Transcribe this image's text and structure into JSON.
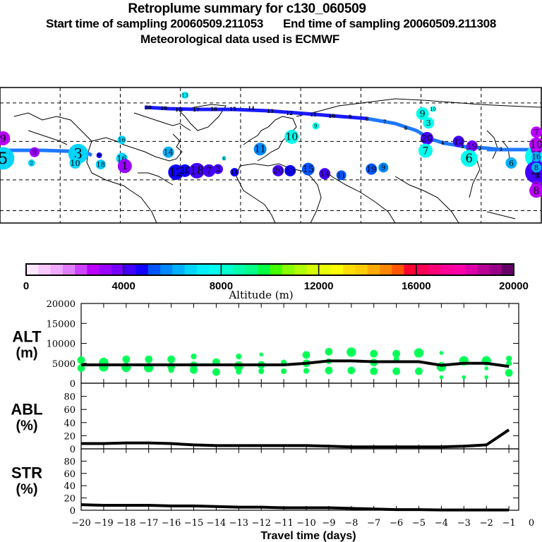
{
  "header": {
    "title": "Retroplume summary for c130_060509",
    "start_label": "Start time of sampling 20060509.211053",
    "end_label": "End time of sampling 20060509.211308",
    "met_label": "Meteorological data used is ECMWF"
  },
  "map": {
    "description": "World map (Pacific-centered, 180W to 180E) with retroplume trajectory and cluster centroids colored by altitude",
    "trajectory_color": "#1a1aff",
    "trajectory_color_light": "#1e78ff",
    "clusters": [
      {
        "label": "5",
        "lon": -178,
        "lat": 34,
        "alt": 6500,
        "r": 16
      },
      {
        "label": "9",
        "lon": -178,
        "lat": 47,
        "alt": 2500,
        "r": 10
      },
      {
        "label": "9",
        "lon": -157,
        "lat": 38,
        "alt": 3200,
        "r": 7
      },
      {
        "label": "2",
        "lon": -159,
        "lat": 31,
        "alt": 6500,
        "r": 5
      },
      {
        "label": "3",
        "lon": -128,
        "lat": 37,
        "alt": 6500,
        "r": 14
      },
      {
        "label": "10",
        "lon": -130,
        "lat": 31,
        "alt": 6500,
        "r": 8
      },
      {
        "label": "18",
        "lon": -113,
        "lat": 30,
        "alt": 6500,
        "r": 7
      },
      {
        "label": "4",
        "lon": -114,
        "lat": 36,
        "alt": 4500,
        "r": 4
      },
      {
        "label": "16",
        "lon": -99,
        "lat": 34,
        "alt": 6500,
        "r": 8
      },
      {
        "label": "1",
        "lon": -97,
        "lat": 29,
        "alt": 3000,
        "r": 10
      },
      {
        "label": "16",
        "lon": -99,
        "lat": 46,
        "alt": 6800,
        "r": 6
      },
      {
        "label": "14",
        "lon": -68,
        "lat": 38,
        "alt": 6000,
        "r": 8
      },
      {
        "label": "12",
        "lon": -63,
        "lat": 25,
        "alt": 4800,
        "r": 11
      },
      {
        "label": "20",
        "lon": -57,
        "lat": 26,
        "alt": 4500,
        "r": 9
      },
      {
        "label": "18",
        "lon": -49,
        "lat": 26,
        "alt": 4200,
        "r": 11
      },
      {
        "label": "7",
        "lon": -41,
        "lat": 26,
        "alt": 4000,
        "r": 9
      },
      {
        "label": "2",
        "lon": -35,
        "lat": 27,
        "alt": 4300,
        "r": 7
      },
      {
        "label": "14",
        "lon": -24,
        "lat": 25,
        "alt": 4700,
        "r": 6
      },
      {
        "label": "6",
        "lon": -31,
        "lat": 34,
        "alt": 7000,
        "r": 3
      },
      {
        "label": "11",
        "lon": -7,
        "lat": 40,
        "alt": 5800,
        "r": 9
      },
      {
        "label": "10",
        "lon": 14,
        "lat": 48,
        "alt": 7800,
        "r": 10
      },
      {
        "label": "9",
        "lon": 30,
        "lat": 55,
        "alt": 7500,
        "r": 5
      },
      {
        "label": "13",
        "lon": -57,
        "lat": 75,
        "alt": 7000,
        "r": 5
      },
      {
        "label": "20",
        "lon": 5,
        "lat": 26,
        "alt": 4200,
        "r": 8
      },
      {
        "label": "13",
        "lon": 13,
        "lat": 26,
        "alt": 4500,
        "r": 8
      },
      {
        "label": "15",
        "lon": 25,
        "lat": 27,
        "alt": 5200,
        "r": 9
      },
      {
        "label": "14",
        "lon": 36,
        "lat": 24,
        "alt": 4400,
        "r": 8
      },
      {
        "label": "11",
        "lon": 47,
        "lat": 23,
        "alt": 5000,
        "r": 7
      },
      {
        "label": "19",
        "lon": 67,
        "lat": 27,
        "alt": 5300,
        "r": 8
      },
      {
        "label": "9",
        "lon": 75,
        "lat": 28,
        "alt": 5800,
        "r": 7
      },
      {
        "label": "9",
        "lon": 101,
        "lat": 63,
        "alt": 7600,
        "r": 9
      },
      {
        "label": "10",
        "lon": 108,
        "lat": 66,
        "alt": 7600,
        "r": 4
      },
      {
        "label": "3",
        "lon": 105,
        "lat": 57,
        "alt": 7600,
        "r": 8
      },
      {
        "label": "20",
        "lon": 104,
        "lat": 47,
        "alt": 4100,
        "r": 9
      },
      {
        "label": "7",
        "lon": 103,
        "lat": 39,
        "alt": 7800,
        "r": 10
      },
      {
        "label": "12",
        "lon": 125,
        "lat": 45,
        "alt": 4400,
        "r": 8
      },
      {
        "label": "19",
        "lon": 134,
        "lat": 42,
        "alt": 3900,
        "r": 8
      },
      {
        "label": "6",
        "lon": 132,
        "lat": 34,
        "alt": 7500,
        "r": 12
      },
      {
        "label": "6",
        "lon": 160,
        "lat": 31,
        "alt": 6200,
        "r": 8
      },
      {
        "label": "9",
        "lon": 174,
        "lat": 32,
        "alt": 6300,
        "r": 3
      }
    ],
    "clusters_east": [
      {
        "label": "10",
        "lon": -165,
        "lat": 34,
        "alt": 3000,
        "r": 8
      },
      {
        "label": "5",
        "lon": -152,
        "lat": 35,
        "alt": 7900,
        "r": 16
      },
      {
        "label": "9",
        "lon": -142,
        "lat": 33,
        "alt": 4200,
        "r": 6
      },
      {
        "label": "4",
        "lon": -135,
        "lat": 33,
        "alt": 7600,
        "r": 4
      },
      {
        "label": "17",
        "lon": -107,
        "lat": 41,
        "alt": 3200,
        "r": 7
      },
      {
        "label": "18",
        "lon": -100,
        "lat": 41,
        "alt": 3300,
        "r": 6
      },
      {
        "label": "2",
        "lon": -96,
        "lat": 35,
        "alt": 3700,
        "r": 6
      },
      {
        "label": "4",
        "lon": -93,
        "lat": 25,
        "alt": 4200,
        "r": 16
      },
      {
        "label": "7",
        "lon": -122,
        "lat": 16,
        "alt": 3000,
        "r": 7
      },
      {
        "label": "8",
        "lon": -108,
        "lat": 13,
        "alt": 2800,
        "r": 10
      },
      {
        "label": "3",
        "lon": -83,
        "lat": 29,
        "alt": 6300,
        "r": 6
      },
      {
        "label": "4",
        "lon": -76,
        "lat": 29,
        "alt": 4600,
        "r": 6
      },
      {
        "label": "12",
        "lon": -66,
        "lat": 40,
        "alt": 3000,
        "r": 8
      },
      {
        "label": "11",
        "lon": -55,
        "lat": 42,
        "alt": 3200,
        "r": 7
      },
      {
        "label": "14",
        "lon": -47,
        "lat": 42,
        "alt": 5500,
        "r": 5
      },
      {
        "label": "10",
        "lon": -23,
        "lat": 43,
        "alt": 2900,
        "r": 10
      },
      {
        "label": "7",
        "lon": -19,
        "lat": 51,
        "alt": 2700,
        "r": 8
      },
      {
        "label": "16",
        "lon": -22,
        "lat": 35,
        "alt": 6300,
        "r": 7
      },
      {
        "label": "8",
        "lon": -30,
        "lat": 28,
        "alt": 6000,
        "r": 7
      }
    ],
    "trajectory_labels": [
      "20",
      "19",
      "18",
      "17",
      "16",
      "15",
      "14",
      "13",
      "12",
      "11",
      "10",
      "9",
      "8",
      "7",
      "6",
      "5",
      "4",
      "3",
      "2",
      "1"
    ]
  },
  "colorbar": {
    "ticks": [
      "0",
      "4000",
      "8000",
      "12000",
      "16000",
      "20000"
    ],
    "label": "Altitude (m)",
    "min": 0,
    "max": 20000,
    "colors": [
      "#ffe6ff",
      "#f8c8ff",
      "#f0aaff",
      "#e080ff",
      "#cc44ff",
      "#bb00ff",
      "#9900ff",
      "#7700ff",
      "#4400ff",
      "#1100ff",
      "#0055ff",
      "#0088ff",
      "#00b0ff",
      "#00d5ff",
      "#00f0ff",
      "#00ffee",
      "#00ffcc",
      "#00ffaa",
      "#00ff88",
      "#00ff44",
      "#44ff00",
      "#88ff00",
      "#b0ff00",
      "#d5ff00",
      "#e8ff00",
      "#ffff00",
      "#ffdd00",
      "#ffcc00",
      "#ffaa00",
      "#ff8800",
      "#ff5500",
      "#ff0033",
      "#ff0055",
      "#ff0077",
      "#ff0099",
      "#ff00aa",
      "#dd00aa",
      "#bb0099",
      "#990088",
      "#660066"
    ]
  },
  "chart_data": [
    {
      "type": "scatter",
      "panel": "ALT",
      "ylabel_line1": "ALT",
      "ylabel_line2": "(m)",
      "ylim": [
        0,
        20000
      ],
      "yticks": [
        "0",
        "5000",
        "10000",
        "15000",
        "20000"
      ],
      "xlim": [
        -20,
        0
      ],
      "mean_line": {
        "x": [
          -20,
          -19,
          -18,
          -17,
          -16,
          -15,
          -14,
          -13,
          -12,
          -11,
          -10,
          -9,
          -8,
          -7,
          -6,
          -5,
          -4,
          -3,
          -2,
          -1
        ],
        "y": [
          4600,
          4600,
          4600,
          4600,
          4600,
          4600,
          4600,
          4600,
          4600,
          4600,
          5000,
          5600,
          5600,
          5400,
          5400,
          5400,
          4500,
          5000,
          5000,
          4200
        ]
      },
      "points": [
        {
          "x": -20,
          "y": 5800,
          "s": 3
        },
        {
          "x": -20,
          "y": 3800,
          "s": 3
        },
        {
          "x": -19,
          "y": 5200,
          "s": 4
        },
        {
          "x": -19,
          "y": 4100,
          "s": 4
        },
        {
          "x": -18,
          "y": 6000,
          "s": 3
        },
        {
          "x": -18,
          "y": 4000,
          "s": 4
        },
        {
          "x": -17,
          "y": 6000,
          "s": 3
        },
        {
          "x": -17,
          "y": 3900,
          "s": 4
        },
        {
          "x": -16,
          "y": 6000,
          "s": 3
        },
        {
          "x": -16,
          "y": 4200,
          "s": 3
        },
        {
          "x": -16,
          "y": 3300,
          "s": 2
        },
        {
          "x": -15,
          "y": 6700,
          "s": 2
        },
        {
          "x": -15,
          "y": 4500,
          "s": 3
        },
        {
          "x": -15,
          "y": 3300,
          "s": 3
        },
        {
          "x": -14,
          "y": 5300,
          "s": 3
        },
        {
          "x": -14,
          "y": 2800,
          "s": 3
        },
        {
          "x": -13,
          "y": 6700,
          "s": 2
        },
        {
          "x": -13,
          "y": 4300,
          "s": 4
        },
        {
          "x": -13,
          "y": 2900,
          "s": 2
        },
        {
          "x": -12,
          "y": 7200,
          "s": 1
        },
        {
          "x": -12,
          "y": 4600,
          "s": 3
        },
        {
          "x": -12,
          "y": 3000,
          "s": 2
        },
        {
          "x": -11,
          "y": 5200,
          "s": 2
        },
        {
          "x": -11,
          "y": 3000,
          "s": 2
        },
        {
          "x": -10,
          "y": 7100,
          "s": 3
        },
        {
          "x": -10,
          "y": 5000,
          "s": 3
        },
        {
          "x": -10,
          "y": 3100,
          "s": 2
        },
        {
          "x": -9,
          "y": 7900,
          "s": 3
        },
        {
          "x": -9,
          "y": 5500,
          "s": 2
        },
        {
          "x": -9,
          "y": 3200,
          "s": 3
        },
        {
          "x": -8,
          "y": 7800,
          "s": 4
        },
        {
          "x": -8,
          "y": 3200,
          "s": 3
        },
        {
          "x": -7,
          "y": 7400,
          "s": 3
        },
        {
          "x": -7,
          "y": 5200,
          "s": 3
        },
        {
          "x": -7,
          "y": 3000,
          "s": 3
        },
        {
          "x": -6,
          "y": 7400,
          "s": 3
        },
        {
          "x": -6,
          "y": 6000,
          "s": 2
        },
        {
          "x": -6,
          "y": 3000,
          "s": 3
        },
        {
          "x": -5,
          "y": 7600,
          "s": 4
        },
        {
          "x": -5,
          "y": 3000,
          "s": 3
        },
        {
          "x": -4,
          "y": 7600,
          "s": 1
        },
        {
          "x": -4,
          "y": 4100,
          "s": 4
        },
        {
          "x": -4,
          "y": 1500,
          "s": 1
        },
        {
          "x": -3,
          "y": 5600,
          "s": 4
        },
        {
          "x": -3,
          "y": 1500,
          "s": 1
        },
        {
          "x": -2,
          "y": 5600,
          "s": 4
        },
        {
          "x": -2,
          "y": 3700,
          "s": 1
        },
        {
          "x": -2,
          "y": 1500,
          "s": 1
        },
        {
          "x": -1,
          "y": 6200,
          "s": 2
        },
        {
          "x": -1,
          "y": 5000,
          "s": 2
        },
        {
          "x": -1,
          "y": 2600,
          "s": 3
        }
      ],
      "point_color": "#00ff55"
    },
    {
      "type": "line",
      "panel": "ABL",
      "ylabel_line1": "ABL",
      "ylabel_line2": "(%)",
      "ylim": [
        0,
        100
      ],
      "yticks": [
        "0",
        "20",
        "40",
        "60",
        "80"
      ],
      "xlim": [
        -20,
        0
      ],
      "x": [
        -20,
        -19,
        -18,
        -17,
        -16,
        -15,
        -14,
        -13,
        -12,
        -11,
        -10,
        -9,
        -8,
        -7,
        -6,
        -5,
        -4,
        -3,
        -2,
        -1
      ],
      "y": [
        8,
        8,
        9,
        9,
        8,
        6,
        5,
        5,
        5,
        5,
        5,
        4,
        3,
        3,
        3,
        3,
        3,
        4,
        6,
        29
      ]
    },
    {
      "type": "line",
      "panel": "STR",
      "ylabel_line1": "STR",
      "ylabel_line2": "(%)",
      "ylim": [
        0,
        100
      ],
      "yticks": [
        "0",
        "20",
        "40",
        "60",
        "80"
      ],
      "xlim": [
        -20,
        0
      ],
      "x": [
        -20,
        -19,
        -18,
        -17,
        -16,
        -15,
        -14,
        -13,
        -12,
        -11,
        -10,
        -9,
        -8,
        -7,
        -6,
        -5,
        -4,
        -3,
        -2,
        -1
      ],
      "y": [
        9,
        8,
        8,
        8,
        7,
        7,
        6,
        5,
        5,
        4,
        4,
        4,
        3,
        2,
        1,
        1,
        0.5,
        0.5,
        0.5,
        0.5
      ],
      "xticks": [
        "−20",
        "−19",
        "−18",
        "−17",
        "−16",
        "−15",
        "−14",
        "−13",
        "−12",
        "−11",
        "−10",
        "−9",
        "−8",
        "−7",
        "−6",
        "−5",
        "−4",
        "−3",
        "−2",
        "−1",
        "0"
      ],
      "xlabel": "Travel time (days)"
    }
  ]
}
